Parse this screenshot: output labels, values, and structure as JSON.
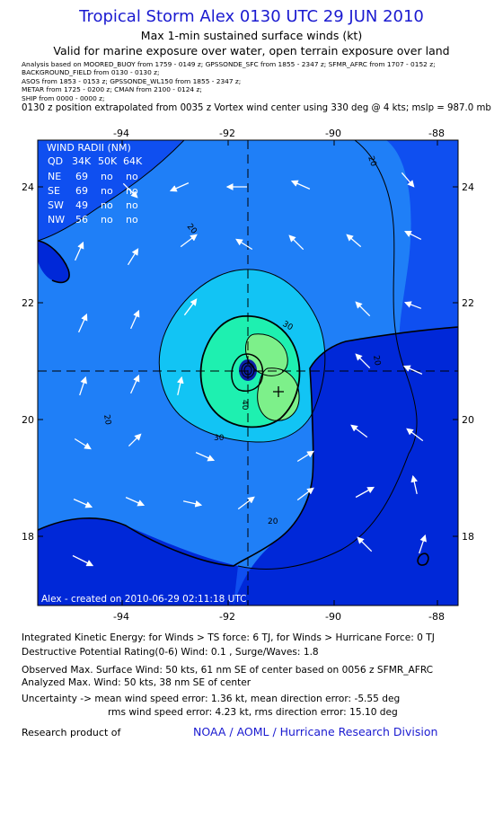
{
  "header": {
    "title": "Tropical Storm Alex 0130 UTC 29 JUN 2010",
    "subtitle": "Max 1-min sustained surface winds (kt)",
    "validity": "Valid for marine exposure over water, open terrain exposure over land",
    "analysis_lines": [
      "Analysis based on  MOORED_BUOY from 1759 - 0149 z;  GPSSONDE_SFC from 1855 - 2347 z;  SFMR_AFRC from 1707 - 0152 z;",
      "BACKGROUND_FIELD from 0130 - 0130 z;",
      "ASOS from 1853 - 0153 z;  GPSSONDE_WL150 from 1855 - 2347 z;",
      "METAR from 1725 - 0200 z;  CMAN from 2100 - 0124 z;",
      "SHIP from 0000 - 0000 z;"
    ],
    "extrapolation": "0130 z position extrapolated from 0035 z Vortex wind center using 330 deg @ 4 kts; mslp = 987.0 mb"
  },
  "map": {
    "lon_ticks": [
      "-94",
      "-92",
      "-90",
      "-88"
    ],
    "lat_ticks": [
      "24",
      "22",
      "20",
      "18"
    ],
    "contour_labels": [
      "20",
      "20",
      "20",
      "20",
      "30",
      "30",
      "40"
    ],
    "wind_radii": {
      "title": "WIND RADII (NM)",
      "header": [
        "QD",
        "34K",
        "50K",
        "64K"
      ],
      "rows": [
        [
          "NE",
          "69",
          "no",
          "no"
        ],
        [
          "SE",
          "69",
          "no",
          "no"
        ],
        [
          "SW",
          "49",
          "no",
          "no"
        ],
        [
          "NW",
          "56",
          "no",
          "no"
        ]
      ]
    },
    "footer": "Alex - created on 2010-06-29 02:11:18 UTC",
    "colors": {
      "outer": "#0f4ff0",
      "ring20": "#1f7ff7",
      "ring30": "#12c4f4",
      "ring40": "#1ef0b0",
      "ring50": "#7df08a",
      "deep": "#0a1fa8",
      "land": "#0028d8"
    }
  },
  "stats": {
    "ike": "Integrated Kinetic Energy:  for Winds > TS force: 6 TJ,  for Winds > Hurricane Force: 0 TJ",
    "dpr": "Destructive Potential Rating(0-6)   Wind: 0.1 , Surge/Waves: 1.8",
    "observed": "Observed Max. Surface Wind: 50 kts, 61 nm SE of center based on 0056 z SFMR_AFRC",
    "analyzed": "Analyzed Max. Wind: 50 kts, 38 nm SE of center",
    "uncertainty1": "Uncertainty -> mean wind speed error: 1.36 kt,   mean direction error:  -5.55 deg",
    "uncertainty2": "rms wind speed error: 4.23 kt,   rms direction error: 15.10 deg"
  },
  "footer": {
    "research": "Research product of",
    "org": "NOAA / AOML / Hurricane Research Division"
  }
}
